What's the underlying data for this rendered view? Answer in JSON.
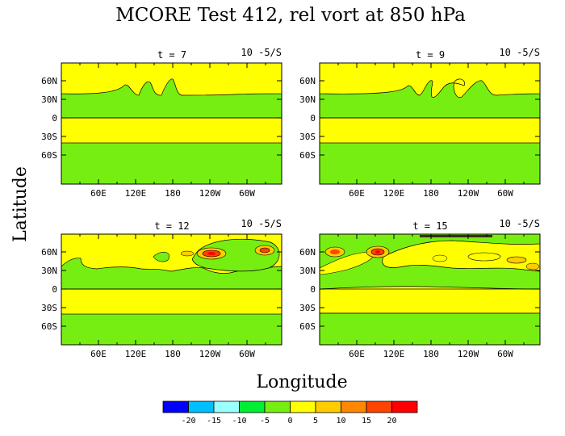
{
  "chart_data": {
    "type": "heatmap",
    "title": "MCORE Test 412, rel vort at 850 hPa",
    "xlabel": "Longitude",
    "ylabel": "Latitude",
    "units": "10 -5/S",
    "x_ticks": [
      "60E",
      "120E",
      "180",
      "120W",
      "60W"
    ],
    "y_ticks": [
      "60N",
      "30N",
      "0",
      "30S",
      "60S"
    ],
    "colorbar": {
      "levels": [
        "-20",
        "-15",
        "-10",
        "-5",
        "0",
        "5",
        "10",
        "15",
        "20"
      ],
      "colors": [
        "#0000ff",
        "#00bfff",
        "#99ffff",
        "#00ee33",
        "#77ee11",
        "#ffff00",
        "#ffcc00",
        "#ff8800",
        "#ff4400",
        "#ff0000"
      ]
    },
    "panels": [
      {
        "label": "t = 7",
        "unit": "10 -5/S",
        "band_color": "#ffff00",
        "background_color": "#77ee11"
      },
      {
        "label": "t = 9",
        "unit": "10 -5/S",
        "band_color": "#ffff00",
        "background_color": "#77ee11"
      },
      {
        "label": "t = 12",
        "unit": "10 -5/S",
        "band_color": "#ffff00",
        "background_color": "#77ee11"
      },
      {
        "label": "t = 15",
        "unit": "10 -5/S",
        "band_color": "#ffff00",
        "background_color": "#77ee11"
      }
    ]
  }
}
